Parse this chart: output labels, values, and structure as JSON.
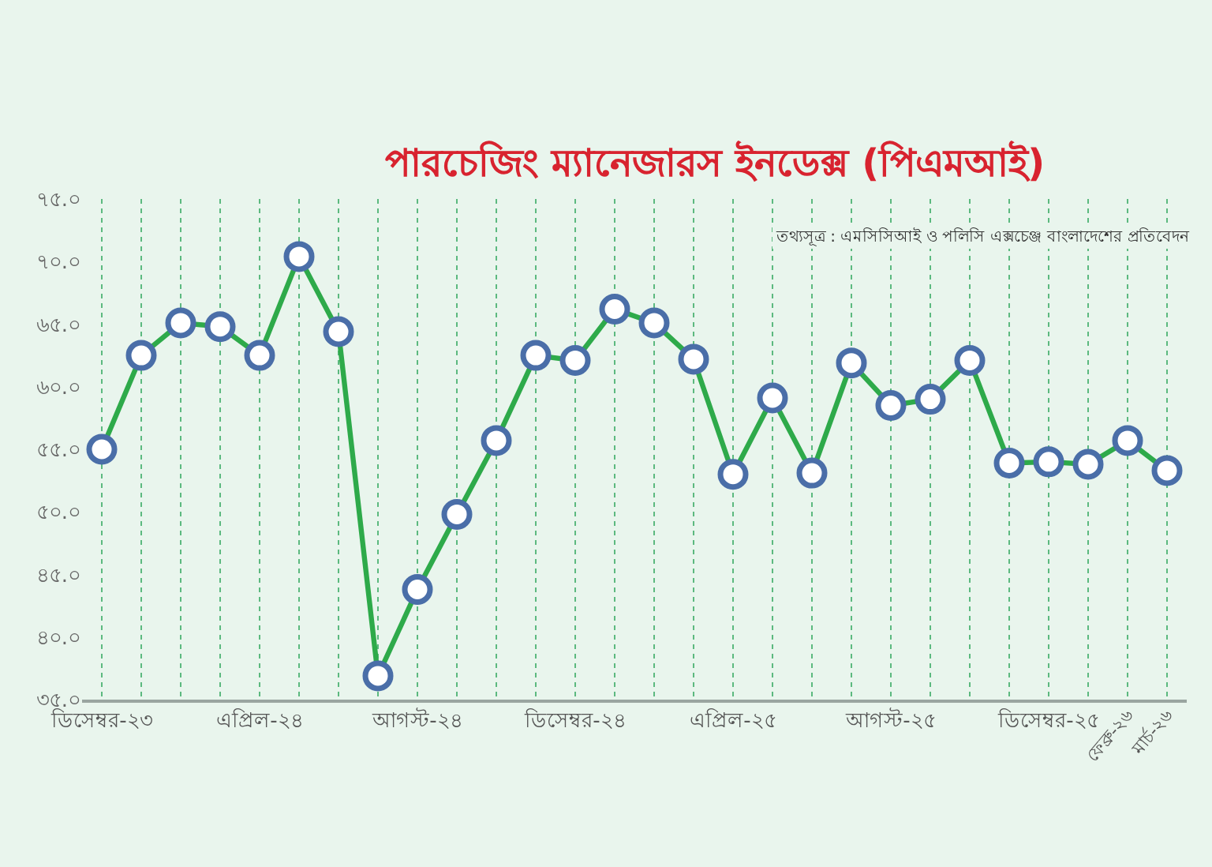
{
  "chart_data": {
    "type": "line",
    "title": "পারচেজিং ম্যানেজারস ইনডেক্স (পিএমআই)",
    "annotations": [
      "তথ্যসূত্র : এমসিসিআই ও পলিসি এক্সচেঞ্জ বাংলাদেশের প্রতিবেদন"
    ],
    "categories": [
      "ডিসেম্বর-২৩",
      null,
      null,
      null,
      "এপ্রিল-২৪",
      null,
      null,
      null,
      "আগস্ট-২৪",
      null,
      null,
      null,
      "ডিসেম্বর-২৪",
      null,
      null,
      null,
      "এপ্রিল-২৫",
      null,
      null,
      null,
      "আগস্ট-২৫",
      null,
      null,
      null,
      "ডিসেম্বর-২৫",
      null,
      "ফেব্রু-২৬",
      "মার্চ-২৬"
    ],
    "series": [
      {
        "color": "#2eaa4a",
        "values": [
          55.0,
          62.5,
          65.1,
          64.8,
          62.5,
          70.4,
          64.4,
          36.9,
          43.8,
          49.8,
          55.7,
          62.5,
          62.1,
          66.2,
          65.1,
          62.2,
          53.0,
          59.1,
          53.1,
          61.9,
          58.5,
          59.0,
          62.1,
          53.9,
          54.0,
          53.8,
          55.7,
          53.3
        ]
      }
    ],
    "ylim": [
      35,
      75
    ],
    "yticks": [
      {
        "value": 35,
        "label": "৩৫.০"
      },
      {
        "value": 40,
        "label": "৪০.০"
      },
      {
        "value": 45,
        "label": "৪৫.০"
      },
      {
        "value": 50,
        "label": "৫০.০"
      },
      {
        "value": 55,
        "label": "৫৫.০"
      },
      {
        "value": 60,
        "label": "৬০.০"
      },
      {
        "value": 65,
        "label": "৬৫.০"
      },
      {
        "value": 70,
        "label": "৭০.০"
      },
      {
        "value": 75,
        "label": "৭৫.০"
      }
    ],
    "grid": "x",
    "marker": "circle",
    "line_style": "solid"
  }
}
